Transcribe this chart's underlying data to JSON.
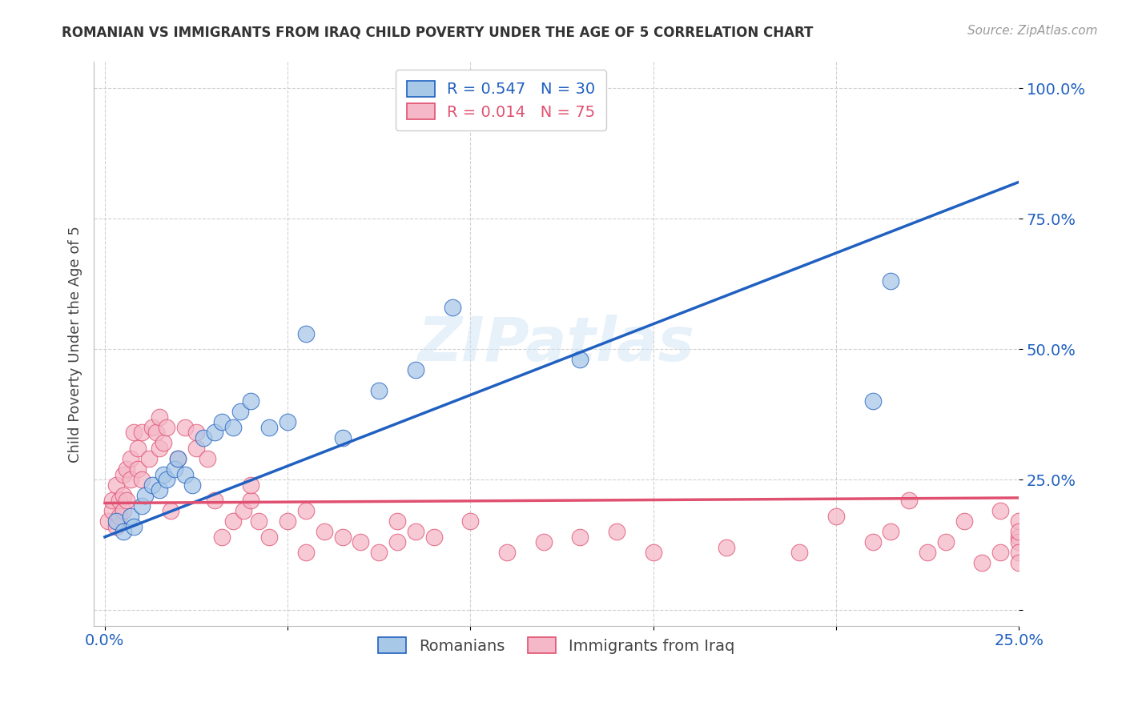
{
  "title": "ROMANIAN VS IMMIGRANTS FROM IRAQ CHILD POVERTY UNDER THE AGE OF 5 CORRELATION CHART",
  "source": "Source: ZipAtlas.com",
  "ylabel": "Child Poverty Under the Age of 5",
  "x_ticks": [
    0.0,
    5.0,
    10.0,
    15.0,
    20.0,
    25.0
  ],
  "x_tick_labels": [
    "0.0%",
    "",
    "",
    "",
    "",
    "25.0%"
  ],
  "y_ticks": [
    0.0,
    25.0,
    50.0,
    75.0,
    100.0
  ],
  "y_tick_labels": [
    "",
    "25.0%",
    "50.0%",
    "75.0%",
    "100.0%"
  ],
  "xlim": [
    -0.3,
    25.0
  ],
  "ylim": [
    -3.0,
    105.0
  ],
  "blue_color": "#a8c8e8",
  "pink_color": "#f4b8c8",
  "line_blue": "#2060c0",
  "line_pink": "#e05070",
  "watermark": "ZIPatlas",
  "romanians_x": [
    0.3,
    0.5,
    0.7,
    0.8,
    1.0,
    1.1,
    1.3,
    1.5,
    1.6,
    1.7,
    1.9,
    2.0,
    2.2,
    2.4,
    2.7,
    3.0,
    3.2,
    3.5,
    3.7,
    4.0,
    4.5,
    5.0,
    5.5,
    6.5,
    7.5,
    8.5,
    9.5,
    13.0,
    21.0,
    21.5
  ],
  "romanians_y": [
    17,
    15,
    18,
    16,
    20,
    22,
    24,
    23,
    26,
    25,
    27,
    29,
    26,
    24,
    33,
    34,
    36,
    35,
    38,
    40,
    35,
    36,
    53,
    33,
    42,
    46,
    58,
    48,
    40,
    63
  ],
  "iraq_x": [
    0.1,
    0.2,
    0.2,
    0.3,
    0.3,
    0.4,
    0.4,
    0.5,
    0.5,
    0.5,
    0.6,
    0.6,
    0.7,
    0.7,
    0.8,
    0.9,
    0.9,
    1.0,
    1.0,
    1.2,
    1.3,
    1.4,
    1.5,
    1.5,
    1.6,
    1.7,
    1.8,
    2.0,
    2.2,
    2.5,
    2.5,
    2.8,
    3.0,
    3.2,
    3.5,
    3.8,
    4.0,
    4.0,
    4.2,
    4.5,
    5.0,
    5.5,
    5.5,
    6.0,
    6.5,
    7.0,
    7.5,
    8.0,
    8.0,
    8.5,
    9.0,
    10.0,
    11.0,
    12.0,
    13.0,
    14.0,
    15.0,
    17.0,
    19.0,
    20.0,
    21.0,
    21.5,
    22.0,
    22.5,
    23.0,
    23.5,
    24.0,
    24.5,
    24.5,
    25.0,
    25.0,
    25.0,
    25.0,
    25.0,
    25.0
  ],
  "iraq_y": [
    17,
    19,
    21,
    16,
    24,
    18,
    21,
    19,
    26,
    22,
    21,
    27,
    29,
    25,
    34,
    27,
    31,
    25,
    34,
    29,
    35,
    34,
    31,
    37,
    32,
    35,
    19,
    29,
    35,
    31,
    34,
    29,
    21,
    14,
    17,
    19,
    21,
    24,
    17,
    14,
    17,
    11,
    19,
    15,
    14,
    13,
    11,
    17,
    13,
    15,
    14,
    17,
    11,
    13,
    14,
    15,
    11,
    12,
    11,
    18,
    13,
    15,
    21,
    11,
    13,
    17,
    9,
    11,
    19,
    14,
    17,
    13,
    11,
    15,
    9
  ],
  "rom_line_x": [
    0.0,
    25.0
  ],
  "rom_line_y": [
    14.0,
    82.0
  ],
  "iraq_line_x": [
    0.0,
    25.0
  ],
  "iraq_line_y": [
    20.5,
    21.5
  ]
}
